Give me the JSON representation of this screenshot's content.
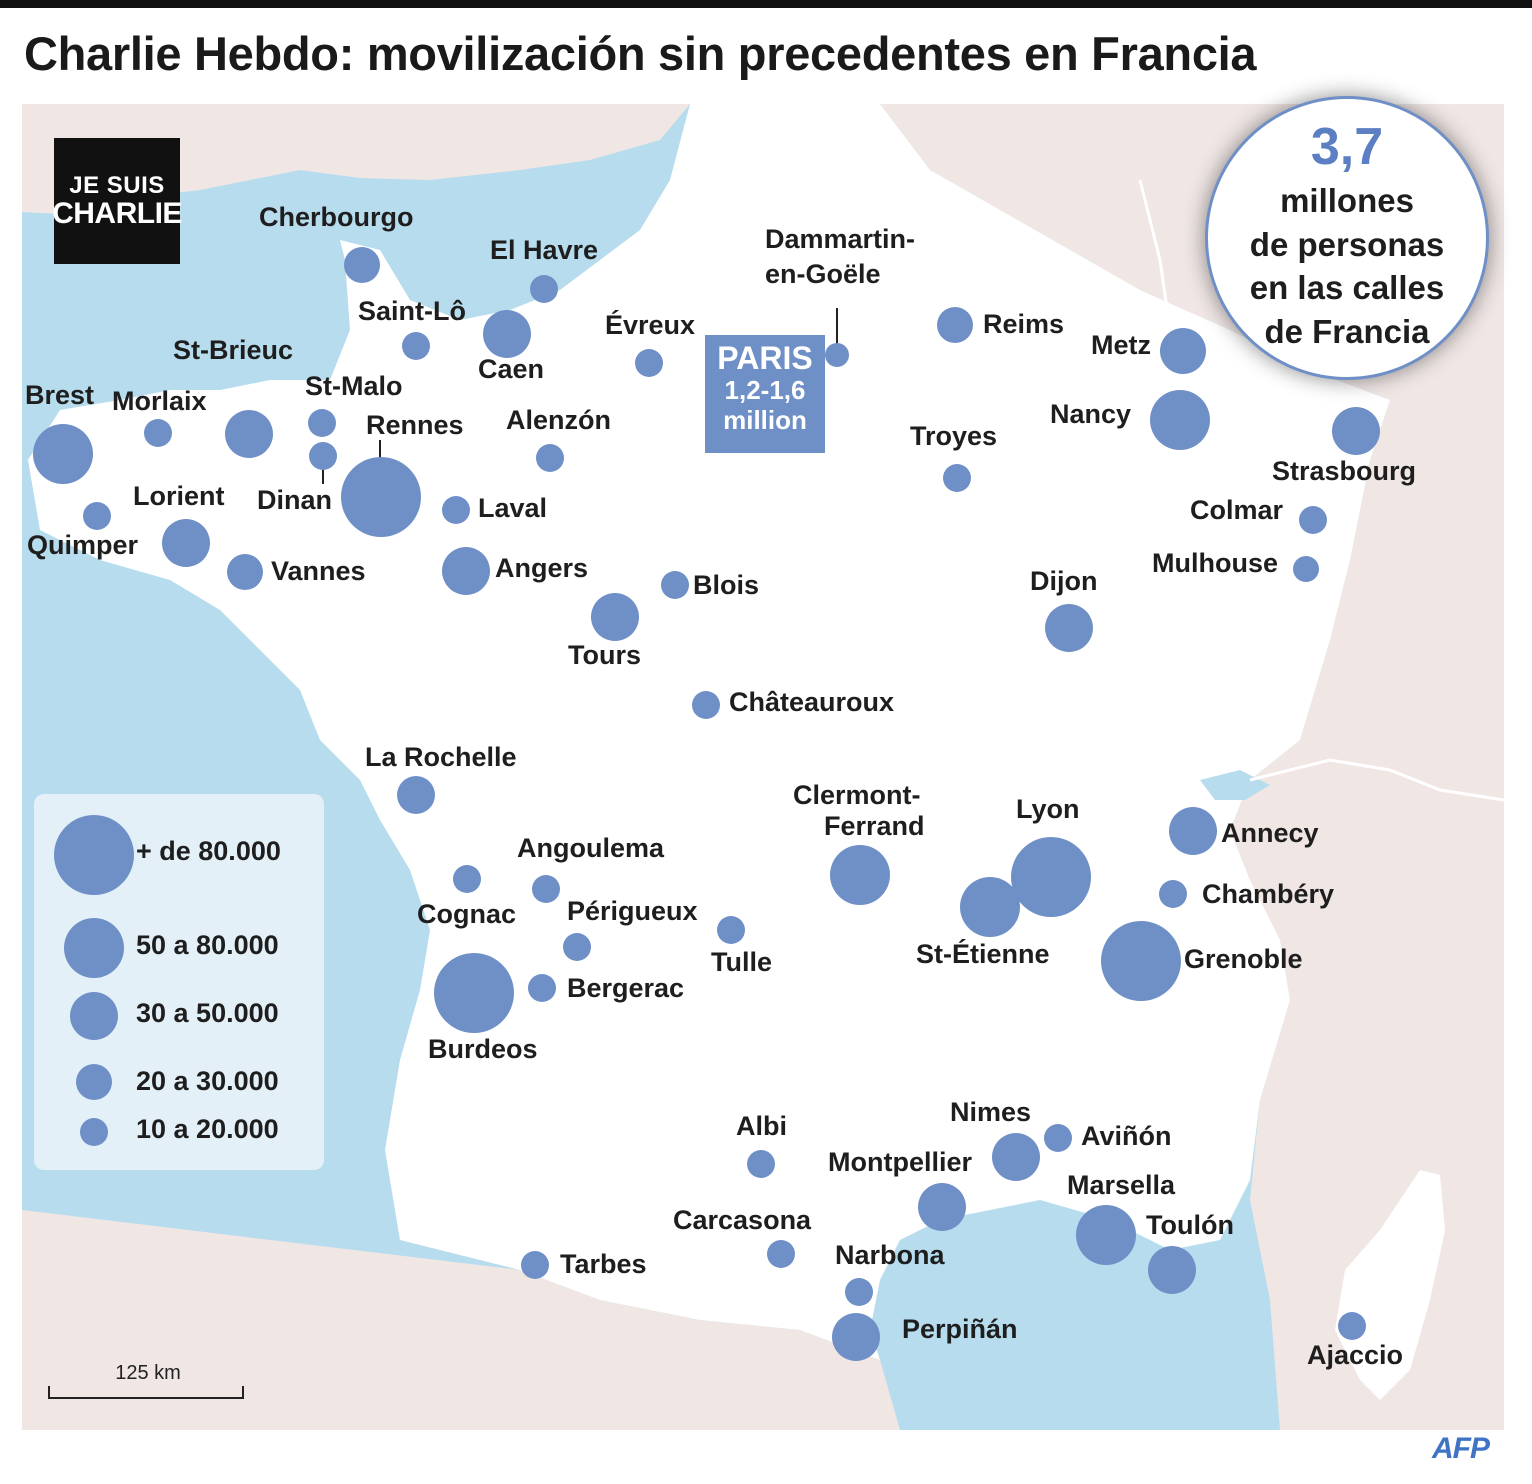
{
  "title": "Charlie Hebdo: movilización sin precedentes en Francia",
  "badge": {
    "line1": "JE SUIS",
    "line2": "CHARLIE"
  },
  "paris": {
    "name": "PARIS",
    "line2": "1,2-1,6",
    "line3": "million"
  },
  "stat": {
    "number": "3,7",
    "text1": "millones",
    "text2": "de personas",
    "text3": "en las calles",
    "text4": "de Francia"
  },
  "legend": [
    {
      "label": "+ de 80.000"
    },
    {
      "label": "50 a 80.000"
    },
    {
      "label": "30 a 50.000"
    },
    {
      "label": "20 a 30.000"
    },
    {
      "label": "10 a 20.000"
    }
  ],
  "scale": "125 km",
  "credit": "AFP",
  "colors": {
    "sea": "#b7dcee",
    "neighbor": "#f0e7e5",
    "france": "#ffffff",
    "bubble": "#6f8fc7",
    "accent": "#5b7fc2"
  },
  "cities": [
    {
      "name": "Cherbourgo",
      "size_class": "20 a 30.000"
    },
    {
      "name": "El Havre",
      "size_class": "10 a 20.000"
    },
    {
      "name": "Saint-Lô",
      "size_class": "10 a 20.000"
    },
    {
      "name": "Caen",
      "size_class": "30 a 50.000"
    },
    {
      "name": "Évreux",
      "size_class": "10 a 20.000"
    },
    {
      "name": "Dammartin-",
      "name2": "en-Goële",
      "size_class": "10 a 20.000"
    },
    {
      "name": "Reims",
      "size_class": "20 a 30.000"
    },
    {
      "name": "Metz",
      "size_class": "30 a 50.000"
    },
    {
      "name": "Nancy",
      "size_class": "50 a 80.000"
    },
    {
      "name": "Strasbourg",
      "size_class": "30 a 50.000"
    },
    {
      "name": "Troyes",
      "size_class": "10 a 20.000"
    },
    {
      "name": "Colmar",
      "size_class": "10 a 20.000"
    },
    {
      "name": "Mulhouse",
      "size_class": "10 a 20.000"
    },
    {
      "name": "Brest",
      "size_class": "50 a 80.000"
    },
    {
      "name": "Morlaix",
      "size_class": "10 a 20.000"
    },
    {
      "name": "St-Brieuc",
      "size_class": "30 a 50.000"
    },
    {
      "name": "St-Malo",
      "size_class": "10 a 20.000"
    },
    {
      "name": "Rennes",
      "size_class": "+ de 80.000"
    },
    {
      "name": "Dinan",
      "size_class": "10 a 20.000"
    },
    {
      "name": "Alenzón",
      "size_class": "10 a 20.000"
    },
    {
      "name": "Laval",
      "size_class": "10 a 20.000"
    },
    {
      "name": "Lorient",
      "size_class": "30 a 50.000"
    },
    {
      "name": "Quimper",
      "size_class": "10 a 20.000"
    },
    {
      "name": "Vannes",
      "size_class": "20 a 30.000"
    },
    {
      "name": "Angers",
      "size_class": "30 a 50.000"
    },
    {
      "name": "Blois",
      "size_class": "10 a 20.000"
    },
    {
      "name": "Tours",
      "size_class": "30 a 50.000"
    },
    {
      "name": "Dijon",
      "size_class": "30 a 50.000"
    },
    {
      "name": "Châteauroux",
      "size_class": "10 a 20.000"
    },
    {
      "name": "La Rochelle",
      "size_class": "20 a 30.000"
    },
    {
      "name": "Clermont-",
      "name2": "Ferrand",
      "size_class": "50 a 80.000"
    },
    {
      "name": "Lyon",
      "size_class": "+ de 80.000"
    },
    {
      "name": "Annecy",
      "size_class": "30 a 50.000"
    },
    {
      "name": "Chambéry",
      "size_class": "10 a 20.000"
    },
    {
      "name": "Angoulema",
      "size_class": "10 a 20.000"
    },
    {
      "name": "Cognac",
      "size_class": "10 a 20.000"
    },
    {
      "name": "Périgueux",
      "size_class": "10 a 20.000"
    },
    {
      "name": "Tulle",
      "size_class": "10 a 20.000"
    },
    {
      "name": "St-Étienne",
      "size_class": "50 a 80.000"
    },
    {
      "name": "Grenoble",
      "size_class": "+ de 80.000"
    },
    {
      "name": "Bergerac",
      "size_class": "10 a 20.000"
    },
    {
      "name": "Burdeos",
      "size_class": "+ de 80.000"
    },
    {
      "name": "Albi",
      "size_class": "10 a 20.000"
    },
    {
      "name": "Nimes",
      "size_class": "30 a 50.000"
    },
    {
      "name": "Aviñón",
      "size_class": "10 a 20.000"
    },
    {
      "name": "Montpellier",
      "size_class": "30 a 50.000"
    },
    {
      "name": "Marsella",
      "size_class": "50 a 80.000"
    },
    {
      "name": "Toulón",
      "size_class": "30 a 50.000"
    },
    {
      "name": "Carcasona",
      "size_class": "10 a 20.000"
    },
    {
      "name": "Narbona",
      "size_class": "10 a 20.000"
    },
    {
      "name": "Tarbes",
      "size_class": "10 a 20.000"
    },
    {
      "name": "Perpiñán",
      "size_class": "30 a 50.000"
    },
    {
      "name": "Ajaccio",
      "size_class": "10 a 20.000"
    }
  ]
}
